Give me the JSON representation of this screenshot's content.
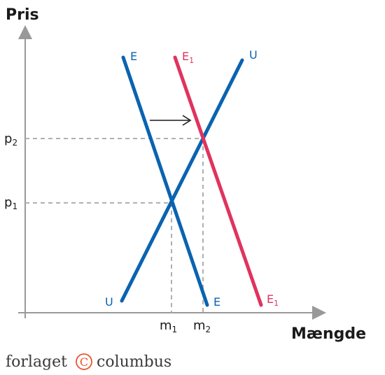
{
  "axes": {
    "y_title": "Pris",
    "x_title": "Mængde"
  },
  "ticks": {
    "p2": {
      "base": "p",
      "sub": "2"
    },
    "p1": {
      "base": "p",
      "sub": "1"
    },
    "m1": {
      "base": "m",
      "sub": "1"
    },
    "m2": {
      "base": "m",
      "sub": "2"
    }
  },
  "curves": {
    "demand_top": "E",
    "demand_bottom": "E",
    "demand_shift_top": {
      "base": "E",
      "sub": "1"
    },
    "demand_shift_bottom": {
      "base": "E",
      "sub": "1"
    },
    "supply_top": "U",
    "supply_bottom": "U"
  },
  "colors": {
    "blue": "#0a63b0",
    "red": "#e0335e",
    "guide": "#b0b0b0",
    "axis": "#999999",
    "logo_circle": "#e8552f"
  },
  "logo": {
    "left": "forlaget",
    "mark": "C",
    "right": "columbus"
  },
  "icons": {
    "shift_arrow": "arrow-right-icon"
  }
}
